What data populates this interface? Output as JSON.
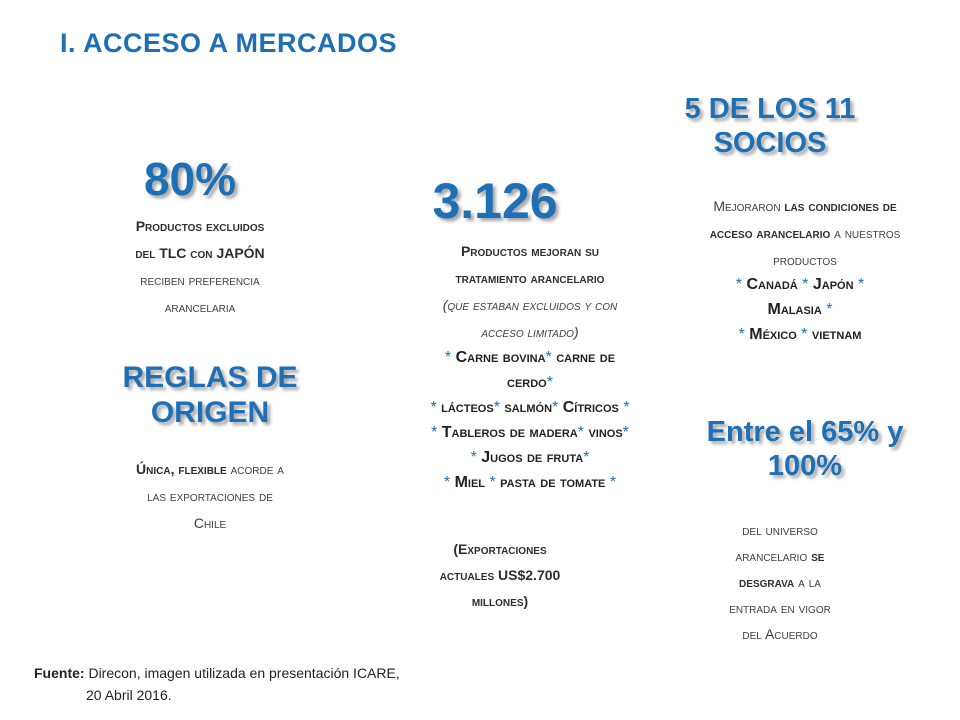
{
  "title": "I. ACCESO A MERCADOS",
  "left": {
    "stat_big": "80%",
    "stat_desc": {
      "l1": "Productos excluidos",
      "l2a": "del ",
      "l2b": "TLC",
      "l2c": " con ",
      "l2d": "JAPÓN",
      "l3": "reciben preferencia",
      "l4": "arancelaria"
    },
    "rules_title": [
      "REGLAS DE",
      "ORIGEN"
    ],
    "rules_desc": {
      "l1a": "Única, flexible",
      "l1b": " acorde a",
      "l2": "las exportaciones de",
      "l3": "Chile"
    }
  },
  "middle": {
    "stat_big": "3.126",
    "desc": {
      "l1": "Productos mejoran su",
      "l2": "tratamiento arancelario",
      "l3": "(que estaban excluidos y con",
      "l4": "acceso limitado)"
    },
    "products": {
      "l1a": "Carne bovina",
      "l1b": " carne de",
      "l2": "cerdo",
      "l3a": "lácteos",
      "l3b": "salmón",
      "l3c": "Cítricos",
      "l4a": "Tableros de madera",
      "l4b": "vinos",
      "l5": "Jugos de fruta",
      "l6a": "Miel",
      "l6b": "pasta de tomate"
    },
    "exports": {
      "l1": "(Exportaciones",
      "l2a": "actuales ",
      "l2b": "US$2.700",
      "l3": "millones)"
    }
  },
  "right": {
    "partners_title": [
      "5 DE LOS 11",
      "SOCIOS"
    ],
    "partners_desc": {
      "l1a": "Mejoraron",
      "l1b": " las condiciones de",
      "l2a": "acceso arancelario",
      "l2b": " a nuestros",
      "l3": "productos"
    },
    "countries": {
      "l1a": "Canadá",
      "l1b": "Japón",
      "l2": "Malasia",
      "l3a": "México",
      "l3b": "vietnam"
    },
    "range_title": [
      "Entre el 65% y",
      "100%"
    ],
    "range_desc": {
      "l1": "del universo",
      "l2a": "arancelario ",
      "l2b": "se",
      "l3a": "desgrava",
      "l3b": " a la",
      "l4": "entrada en vigor",
      "l5": "del Acuerdo"
    }
  },
  "footer": {
    "label": "Fuente:",
    "line1": "Direcon, imagen utilizada en presentación ICARE,",
    "line2": "20 Abril 2016."
  },
  "colors": {
    "accent": "#1f6fb5",
    "text": "#404040"
  }
}
